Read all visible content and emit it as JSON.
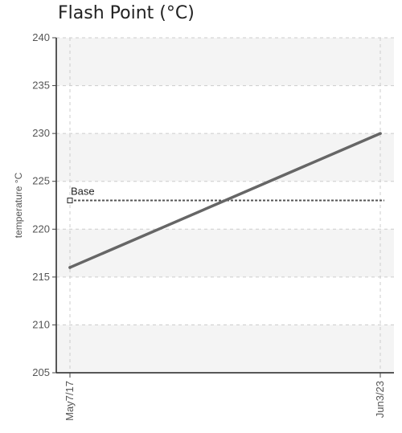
{
  "chart_data": {
    "type": "line",
    "title": "Flash Point (°C)",
    "ylabel": "temperature °C",
    "xlabel": "",
    "ylim": [
      205,
      240
    ],
    "yticks": [
      205,
      210,
      215,
      220,
      225,
      230,
      235,
      240
    ],
    "categories": [
      "May7/17",
      "Jun3/23"
    ],
    "series": [
      {
        "values": [
          216,
          230
        ],
        "color": "#666666"
      }
    ],
    "reference_line": {
      "label": "Base",
      "value": 223,
      "color": "#555555",
      "style": "dashed"
    },
    "band_color": "#f4f4f4",
    "grid": true
  }
}
